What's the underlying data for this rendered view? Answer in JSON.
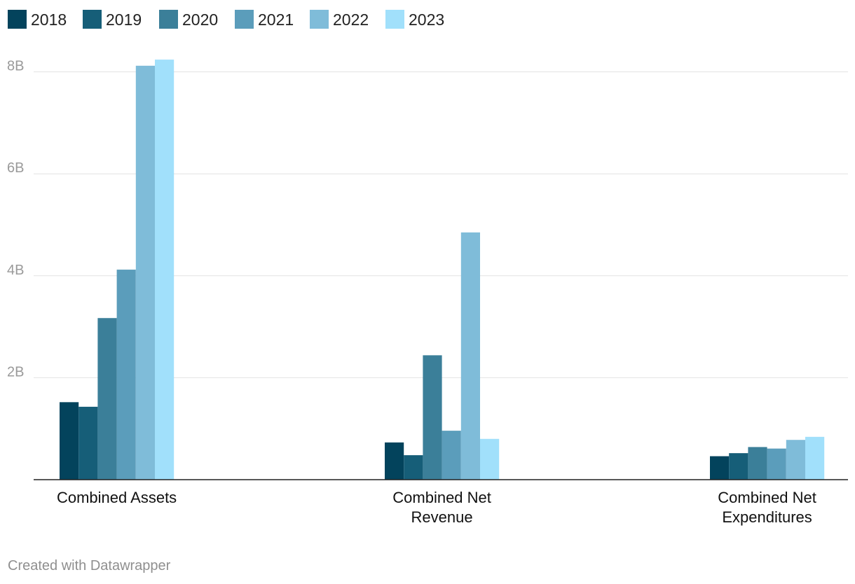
{
  "chart_data": {
    "type": "bar",
    "title": "",
    "xlabel": "",
    "ylabel": "",
    "categories": [
      [
        "Combined Assets"
      ],
      [
        "Combined Net",
        "Revenue"
      ],
      [
        "Combined Net",
        "Expenditures"
      ]
    ],
    "series": [
      {
        "name": "2018",
        "color": "#03435c",
        "values": [
          1.52,
          0.73,
          0.46
        ]
      },
      {
        "name": "2019",
        "color": "#165e78",
        "values": [
          1.43,
          0.48,
          0.52
        ]
      },
      {
        "name": "2020",
        "color": "#3b7f99",
        "values": [
          3.17,
          2.44,
          0.64
        ]
      },
      {
        "name": "2021",
        "color": "#5b9dbb",
        "values": [
          4.12,
          0.96,
          0.61
        ]
      },
      {
        "name": "2022",
        "color": "#7fbcd9",
        "values": [
          8.12,
          4.85,
          0.78
        ]
      },
      {
        "name": "2023",
        "color": "#a1e0fb",
        "values": [
          8.24,
          0.8,
          0.84
        ]
      }
    ],
    "ylim": [
      0,
      8.2
    ],
    "yticks": [
      {
        "value": 2,
        "label": "2B"
      },
      {
        "value": 4,
        "label": "4B"
      },
      {
        "value": 6,
        "label": "6B"
      },
      {
        "value": 8,
        "label": "8B"
      }
    ],
    "grid": true,
    "legend_position": "top-left"
  },
  "footer": "Created with Datawrapper"
}
